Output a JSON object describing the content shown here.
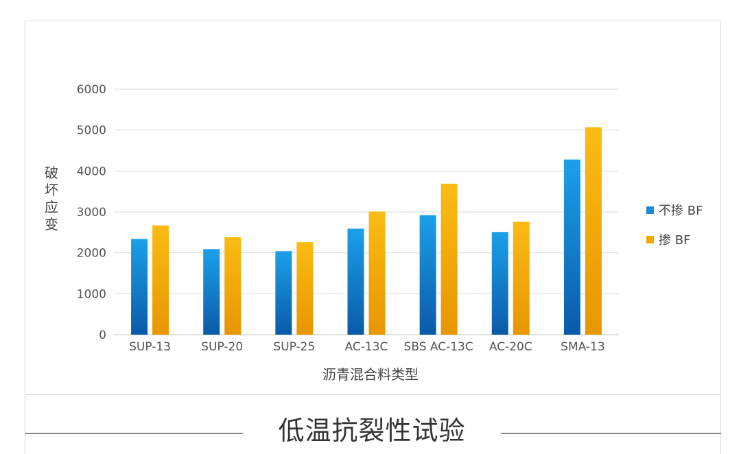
{
  "caption": "低温抗裂性试验",
  "chart_data": {
    "type": "bar",
    "title": "",
    "xlabel": "沥青混合料类型",
    "ylabel": "破坏应变",
    "categories": [
      "SUP-13",
      "SUP-20",
      "SUP-25",
      "AC-13C",
      "SBS AC-13C",
      "AC-20C",
      "SMA-13"
    ],
    "series": [
      {
        "name": "不掺 BF",
        "values": [
          2340,
          2090,
          2040,
          2590,
          2920,
          2510,
          4280
        ],
        "color": "#1a8ad4"
      },
      {
        "name": "掺 BF",
        "values": [
          2670,
          2380,
          2260,
          3010,
          3690,
          2760,
          5070
        ],
        "color": "#f2a900"
      }
    ],
    "ylim": [
      0,
      6000
    ],
    "yticks": [
      0,
      1000,
      2000,
      3000,
      4000,
      5000,
      6000
    ],
    "grid": true,
    "legend_position": "right"
  }
}
